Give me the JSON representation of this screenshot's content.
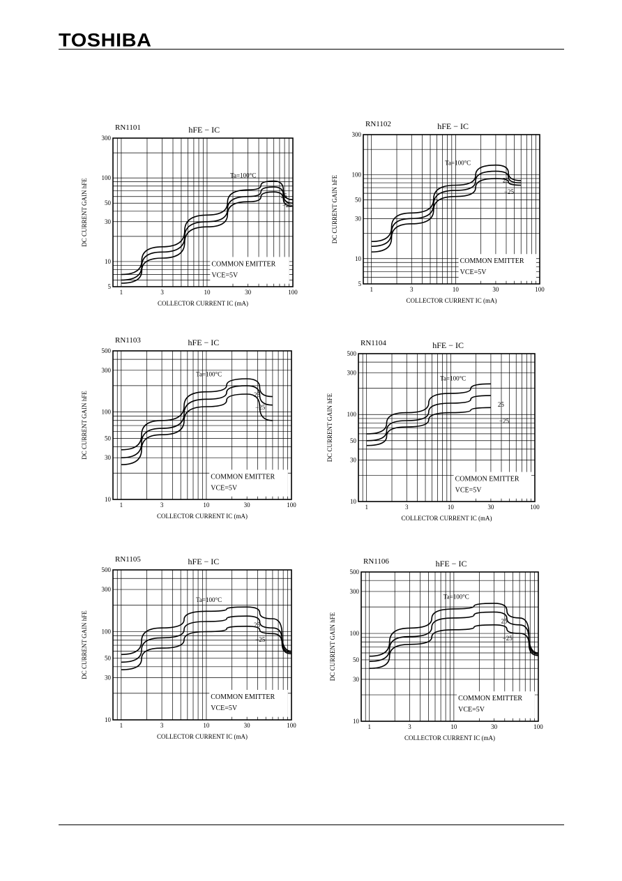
{
  "header": {
    "logo": "TOSHIBA"
  },
  "chart_data": [
    {
      "type": "line",
      "part": "RN1101",
      "title": "hFE − IC",
      "xlabel": "COLLECTOR CURRENT IC (mA)",
      "ylabel": "DC CURRENT GAIN hFE",
      "xscale": "log",
      "yscale": "log",
      "xlim": [
        0.8,
        100
      ],
      "ylim": [
        5,
        300
      ],
      "xticks": [
        1,
        3,
        10,
        30,
        100
      ],
      "yticks": [
        5,
        10,
        30,
        50,
        100,
        300
      ],
      "condition": [
        "COMMON EMITTER",
        "VCE=5V"
      ],
      "series": [
        {
          "name": "Ta=100°C",
          "x": [
            1,
            3,
            10,
            30,
            60,
            100
          ],
          "y": [
            7,
            15,
            36,
            72,
            92,
            55
          ]
        },
        {
          "name": "25",
          "x": [
            1,
            3,
            10,
            30,
            60,
            100
          ],
          "y": [
            6,
            13,
            30,
            60,
            78,
            50
          ]
        },
        {
          "name": "−25",
          "x": [
            1,
            3,
            10,
            30,
            60,
            100
          ],
          "y": [
            5.5,
            11,
            26,
            52,
            68,
            46
          ]
        }
      ]
    },
    {
      "type": "line",
      "part": "RN1102",
      "title": "hFE − IC",
      "xlabel": "COLLECTOR CURRENT IC (mA)",
      "ylabel": "DC CURRENT GAIN hFE",
      "xscale": "log",
      "yscale": "log",
      "xlim": [
        0.8,
        100
      ],
      "ylim": [
        5,
        300
      ],
      "xticks": [
        1,
        3,
        10,
        30,
        100
      ],
      "yticks": [
        5,
        10,
        30,
        50,
        100,
        300
      ],
      "condition": [
        "COMMON EMITTER",
        "VCE=5V"
      ],
      "series": [
        {
          "name": "Ta=100°C",
          "x": [
            1,
            3,
            10,
            30,
            60
          ],
          "y": [
            16,
            35,
            75,
            130,
            85
          ]
        },
        {
          "name": "25",
          "x": [
            1,
            3,
            10,
            30,
            60
          ],
          "y": [
            14,
            30,
            65,
            110,
            80
          ]
        },
        {
          "name": "−25",
          "x": [
            1,
            3,
            10,
            30,
            60
          ],
          "y": [
            12,
            26,
            55,
            90,
            75
          ]
        }
      ]
    },
    {
      "type": "line",
      "part": "RN1103",
      "title": "hFE − IC",
      "xlabel": "COLLECTOR CURRENT IC (mA)",
      "ylabel": "DC CURRENT GAIN hFE",
      "xscale": "log",
      "yscale": "log",
      "xlim": [
        0.8,
        100
      ],
      "ylim": [
        10,
        500
      ],
      "xticks": [
        1,
        3,
        10,
        30,
        100
      ],
      "yticks": [
        10,
        30,
        50,
        100,
        300,
        500
      ],
      "condition": [
        "COMMON EMITTER",
        "VCE=5V"
      ],
      "series": [
        {
          "name": "Ta=100°C",
          "x": [
            1,
            3,
            10,
            30,
            60
          ],
          "y": [
            37,
            80,
            170,
            240,
            150
          ]
        },
        {
          "name": "25",
          "x": [
            1,
            3,
            10,
            30,
            60
          ],
          "y": [
            30,
            65,
            140,
            200,
            120
          ]
        },
        {
          "name": "−25",
          "x": [
            1,
            3,
            10,
            30,
            60
          ],
          "y": [
            25,
            55,
            115,
            160,
            80
          ]
        }
      ]
    },
    {
      "type": "line",
      "part": "RN1104",
      "title": "hFE − IC",
      "xlabel": "COLLECTOR CURRENT IC (mA)",
      "ylabel": "DC CURRENT GAIN hFE",
      "xscale": "log",
      "yscale": "log",
      "xlim": [
        0.8,
        100
      ],
      "ylim": [
        10,
        500
      ],
      "xticks": [
        1,
        3,
        10,
        30,
        100
      ],
      "yticks": [
        10,
        30,
        50,
        100,
        300,
        500
      ],
      "condition": [
        "COMMON EMITTER",
        "VCE=5V"
      ],
      "series": [
        {
          "name": "Ta=100°C",
          "x": [
            1,
            3,
            10,
            30
          ],
          "y": [
            60,
            105,
            175,
            225
          ]
        },
        {
          "name": "25",
          "x": [
            1,
            3,
            10,
            30
          ],
          "y": [
            50,
            85,
            135,
            165
          ]
        },
        {
          "name": "−25",
          "x": [
            1,
            3,
            10,
            30
          ],
          "y": [
            44,
            72,
            105,
            120
          ]
        }
      ]
    },
    {
      "type": "line",
      "part": "RN1105",
      "title": "hFE − IC",
      "xlabel": "COLLECTOR CURRENT IC (mA)",
      "ylabel": "DC CURRENT GAIN hFE",
      "xscale": "log",
      "yscale": "log",
      "xlim": [
        0.8,
        100
      ],
      "ylim": [
        10,
        500
      ],
      "xticks": [
        1,
        3,
        10,
        30,
        100
      ],
      "yticks": [
        10,
        30,
        50,
        100,
        300,
        500
      ],
      "condition": [
        "COMMON EMITTER",
        "VCE=5V"
      ],
      "series": [
        {
          "name": "Ta=100°C",
          "x": [
            1,
            3,
            10,
            30,
            60,
            100
          ],
          "y": [
            55,
            110,
            170,
            190,
            140,
            60
          ]
        },
        {
          "name": "25",
          "x": [
            1,
            3,
            10,
            30,
            60,
            100
          ],
          "y": [
            45,
            85,
            130,
            150,
            110,
            58
          ]
        },
        {
          "name": "−25",
          "x": [
            1,
            3,
            10,
            30,
            60,
            100
          ],
          "y": [
            37,
            65,
            100,
            115,
            95,
            56
          ]
        }
      ]
    },
    {
      "type": "line",
      "part": "RN1106",
      "title": "hFE − IC",
      "xlabel": "COLLECTOR CURRENT IC (mA)",
      "ylabel": "DC CURRENT GAIN hFE",
      "xscale": "log",
      "yscale": "log",
      "xlim": [
        0.8,
        100
      ],
      "ylim": [
        10,
        500
      ],
      "xticks": [
        1,
        3,
        10,
        30,
        100
      ],
      "yticks": [
        10,
        30,
        50,
        100,
        300,
        500
      ],
      "condition": [
        "COMMON EMITTER",
        "VCE=5V"
      ],
      "series": [
        {
          "name": "Ta=100°C",
          "x": [
            1,
            3,
            10,
            30,
            60,
            100
          ],
          "y": [
            55,
            115,
            190,
            220,
            150,
            60
          ]
        },
        {
          "name": "25",
          "x": [
            1,
            3,
            10,
            30,
            60,
            100
          ],
          "y": [
            48,
            92,
            150,
            175,
            125,
            58
          ]
        },
        {
          "name": "−25",
          "x": [
            1,
            3,
            10,
            30,
            60,
            100
          ],
          "y": [
            40,
            75,
            110,
            125,
            100,
            56
          ]
        }
      ]
    }
  ]
}
